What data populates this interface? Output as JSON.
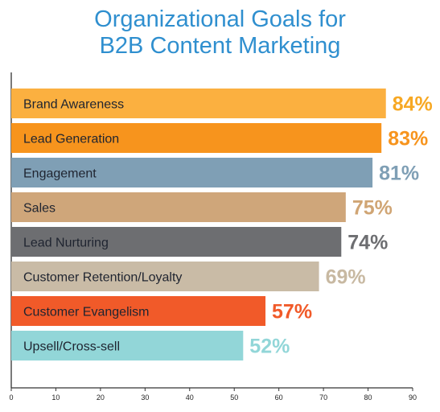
{
  "title": {
    "line1": "Organizational Goals for",
    "line2": "B2B Content Marketing"
  },
  "chart_data": {
    "type": "bar",
    "orientation": "horizontal",
    "categories": [
      "Brand Awareness",
      "Lead Generation",
      "Engagement",
      "Sales",
      "Lead Nurturing",
      "Customer Retention/Loyalty",
      "Customer Evangelism",
      "Upsell/Cross-sell"
    ],
    "values": [
      84,
      83,
      81,
      75,
      74,
      69,
      57,
      52
    ],
    "value_labels": [
      "84%",
      "83%",
      "81%",
      "75%",
      "74%",
      "69%",
      "57%",
      "52%"
    ],
    "colors": [
      "#fbb040",
      "#f7941d",
      "#7f9fb5",
      "#cfa67a",
      "#6d6e71",
      "#c9bba6",
      "#f15a29",
      "#92d6d8"
    ],
    "label_colors": [
      "#f7a823",
      "#f7941d",
      "#7f9fb5",
      "#d0a574",
      "#6d6e71",
      "#c8b9a2",
      "#f15a29",
      "#92d6d8"
    ],
    "xlim": [
      0,
      90
    ],
    "xticks": [
      0,
      10,
      20,
      30,
      40,
      50,
      60,
      70,
      80,
      90
    ],
    "grid": false,
    "legend": "none"
  }
}
